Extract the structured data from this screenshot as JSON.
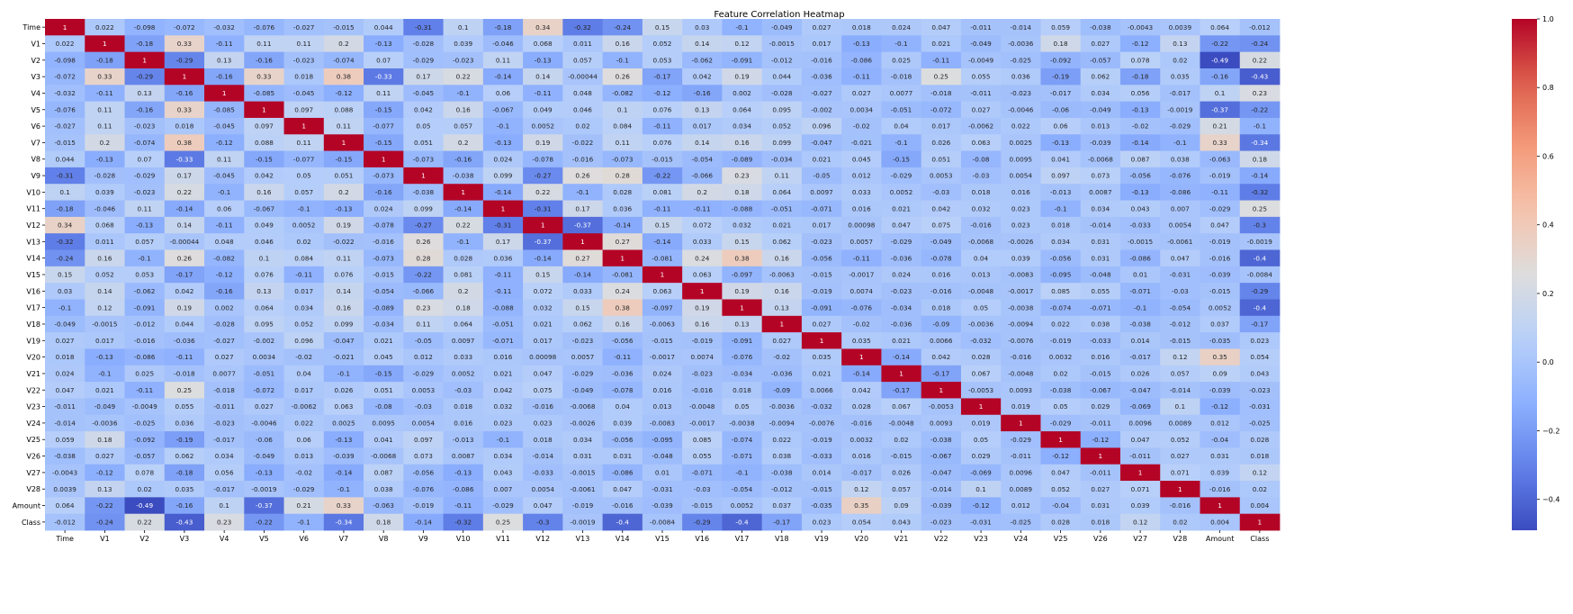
{
  "chart_data": {
    "type": "heatmap",
    "title": "Feature Correlation Heatmap",
    "variables": [
      "Time",
      "V1",
      "V2",
      "V3",
      "V4",
      "V5",
      "V6",
      "V7",
      "V8",
      "V9",
      "V10",
      "V11",
      "V12",
      "V13",
      "V14",
      "V15",
      "V16",
      "V17",
      "V18",
      "V19",
      "V20",
      "V21",
      "V22",
      "V23",
      "V24",
      "V25",
      "V26",
      "V27",
      "V28",
      "Amount",
      "Class"
    ],
    "matrix": [
      [
        1,
        0.022,
        -0.098,
        -0.072,
        -0.032,
        -0.076,
        -0.027,
        -0.015,
        0.044,
        -0.31,
        0.1,
        -0.18,
        0.34,
        -0.32,
        -0.24,
        0.15,
        0.03,
        -0.1,
        -0.049,
        0.027,
        0.018,
        0.024,
        0.047,
        -0.011,
        -0.014,
        0.059,
        -0.038,
        -0.0043,
        0.0039,
        0.064,
        -0.012
      ],
      [
        0.022,
        1,
        -0.18,
        0.33,
        -0.11,
        0.11,
        0.11,
        0.2,
        -0.13,
        -0.028,
        0.039,
        -0.046,
        0.068,
        0.011,
        0.16,
        0.052,
        0.14,
        0.12,
        -0.0015,
        0.017,
        -0.13,
        -0.1,
        0.021,
        -0.049,
        -0.0036,
        0.18,
        0.027,
        -0.12,
        0.13,
        -0.22,
        -0.24
      ],
      [
        -0.098,
        -0.18,
        1,
        -0.29,
        0.13,
        -0.16,
        -0.023,
        -0.074,
        0.07,
        -0.029,
        -0.023,
        0.11,
        -0.13,
        0.057,
        -0.1,
        0.053,
        -0.062,
        -0.091,
        -0.012,
        -0.016,
        -0.086,
        0.025,
        -0.11,
        -0.0049,
        -0.025,
        -0.092,
        -0.057,
        0.078,
        0.02,
        -0.49,
        0.22
      ],
      [
        -0.072,
        0.33,
        -0.29,
        1,
        -0.16,
        0.33,
        0.018,
        0.38,
        -0.33,
        0.17,
        0.22,
        -0.14,
        0.14,
        -0.00044,
        0.26,
        -0.17,
        0.042,
        0.19,
        0.044,
        -0.036,
        -0.11,
        -0.018,
        0.25,
        0.055,
        0.036,
        -0.19,
        0.062,
        -0.18,
        0.035,
        -0.16,
        -0.43
      ],
      [
        -0.032,
        -0.11,
        0.13,
        -0.16,
        1,
        -0.085,
        -0.045,
        -0.12,
        0.11,
        -0.045,
        -0.1,
        0.06,
        -0.11,
        0.048,
        -0.082,
        -0.12,
        -0.16,
        0.002,
        -0.028,
        -0.027,
        0.027,
        0.0077,
        -0.018,
        -0.011,
        -0.023,
        -0.017,
        0.034,
        0.056,
        -0.017,
        0.1,
        0.23
      ],
      [
        -0.076,
        0.11,
        -0.16,
        0.33,
        -0.085,
        1,
        0.097,
        0.088,
        -0.15,
        0.042,
        0.16,
        -0.067,
        0.049,
        0.046,
        0.1,
        0.076,
        0.13,
        0.064,
        0.095,
        -0.002,
        0.0034,
        -0.051,
        -0.072,
        0.027,
        -0.0046,
        -0.06,
        -0.049,
        -0.13,
        -0.0019,
        -0.37,
        -0.22
      ],
      [
        -0.027,
        0.11,
        -0.023,
        0.018,
        -0.045,
        0.097,
        1,
        0.11,
        -0.077,
        0.05,
        0.057,
        -0.1,
        0.0052,
        0.02,
        0.084,
        -0.11,
        0.017,
        0.034,
        0.052,
        0.096,
        -0.02,
        0.04,
        0.017,
        -0.0062,
        0.022,
        0.06,
        0.013,
        -0.02,
        -0.029,
        0.21,
        -0.1
      ],
      [
        -0.015,
        0.2,
        -0.074,
        0.38,
        -0.12,
        0.088,
        0.11,
        1,
        -0.15,
        0.051,
        0.2,
        -0.13,
        0.19,
        -0.022,
        0.11,
        0.076,
        0.14,
        0.16,
        0.099,
        -0.047,
        -0.021,
        -0.1,
        0.026,
        0.063,
        0.0025,
        -0.13,
        -0.039,
        -0.14,
        -0.1,
        0.33,
        -0.34
      ],
      [
        0.044,
        -0.13,
        0.07,
        -0.33,
        0.11,
        -0.15,
        -0.077,
        -0.15,
        1,
        -0.073,
        -0.16,
        0.024,
        -0.078,
        -0.016,
        -0.073,
        -0.015,
        -0.054,
        -0.089,
        -0.034,
        0.021,
        0.045,
        -0.15,
        0.051,
        -0.08,
        0.0095,
        0.041,
        -0.0068,
        0.087,
        0.038,
        -0.063,
        0.18
      ],
      [
        -0.31,
        -0.028,
        -0.029,
        0.17,
        -0.045,
        0.042,
        0.05,
        0.051,
        -0.073,
        1,
        -0.038,
        0.099,
        -0.27,
        0.26,
        0.28,
        -0.22,
        -0.066,
        0.23,
        0.11,
        -0.05,
        0.012,
        -0.029,
        0.0053,
        -0.03,
        0.0054,
        0.097,
        0.073,
        -0.056,
        -0.076,
        -0.019,
        -0.14
      ],
      [
        0.1,
        0.039,
        -0.023,
        0.22,
        -0.1,
        0.16,
        0.057,
        0.2,
        -0.16,
        -0.038,
        1,
        -0.14,
        0.22,
        -0.1,
        0.028,
        0.081,
        0.2,
        0.18,
        0.064,
        0.0097,
        0.033,
        0.0052,
        -0.03,
        0.018,
        0.016,
        -0.013,
        0.0087,
        -0.13,
        -0.086,
        -0.11,
        -0.32
      ],
      [
        -0.18,
        -0.046,
        0.11,
        -0.14,
        0.06,
        -0.067,
        -0.1,
        -0.13,
        0.024,
        0.099,
        -0.14,
        1,
        -0.31,
        0.17,
        0.036,
        -0.11,
        -0.11,
        -0.088,
        -0.051,
        -0.071,
        0.016,
        0.021,
        0.042,
        0.032,
        0.023,
        -0.1,
        0.034,
        0.043,
        0.007,
        -0.029,
        0.25
      ],
      [
        0.34,
        0.068,
        -0.13,
        0.14,
        -0.11,
        0.049,
        0.0052,
        0.19,
        -0.078,
        -0.27,
        0.22,
        -0.31,
        1,
        -0.37,
        -0.14,
        0.15,
        0.072,
        0.032,
        0.021,
        0.017,
        0.00098,
        0.047,
        0.075,
        -0.016,
        0.023,
        0.018,
        -0.014,
        -0.033,
        0.0054,
        0.047,
        -0.3
      ],
      [
        -0.32,
        0.011,
        0.057,
        -0.00044,
        0.048,
        0.046,
        0.02,
        -0.022,
        -0.016,
        0.26,
        -0.1,
        0.17,
        -0.37,
        1,
        0.27,
        -0.14,
        0.033,
        0.15,
        0.062,
        -0.023,
        0.0057,
        -0.029,
        -0.049,
        -0.0068,
        -0.0026,
        0.034,
        0.031,
        -0.0015,
        -0.0061,
        -0.019,
        -0.0019
      ],
      [
        -0.24,
        0.16,
        -0.1,
        0.26,
        -0.082,
        0.1,
        0.084,
        0.11,
        -0.073,
        0.28,
        0.028,
        0.036,
        -0.14,
        0.27,
        1,
        -0.081,
        0.24,
        0.38,
        0.16,
        -0.056,
        -0.11,
        -0.036,
        -0.078,
        0.04,
        0.039,
        -0.056,
        0.031,
        -0.086,
        0.047,
        -0.016,
        -0.4
      ],
      [
        0.15,
        0.052,
        0.053,
        -0.17,
        -0.12,
        0.076,
        -0.11,
        0.076,
        -0.015,
        -0.22,
        0.081,
        -0.11,
        0.15,
        -0.14,
        -0.081,
        1,
        0.063,
        -0.097,
        -0.0063,
        -0.015,
        -0.0017,
        0.024,
        0.016,
        0.013,
        -0.0083,
        -0.095,
        -0.048,
        0.01,
        -0.031,
        -0.039,
        -0.0084
      ],
      [
        0.03,
        0.14,
        -0.062,
        0.042,
        -0.16,
        0.13,
        0.017,
        0.14,
        -0.054,
        -0.066,
        0.2,
        -0.11,
        0.072,
        0.033,
        0.24,
        0.063,
        1,
        0.19,
        0.16,
        -0.019,
        0.0074,
        -0.023,
        -0.016,
        -0.0048,
        -0.0017,
        0.085,
        0.055,
        -0.071,
        -0.03,
        -0.015,
        -0.29
      ],
      [
        -0.1,
        0.12,
        -0.091,
        0.19,
        0.002,
        0.064,
        0.034,
        0.16,
        -0.089,
        0.23,
        0.18,
        -0.088,
        0.032,
        0.15,
        0.38,
        -0.097,
        0.19,
        1,
        0.13,
        -0.091,
        -0.076,
        -0.034,
        0.018,
        0.05,
        -0.0038,
        -0.074,
        -0.071,
        -0.1,
        -0.054,
        0.0052,
        -0.4
      ],
      [
        -0.049,
        -0.0015,
        -0.012,
        0.044,
        -0.028,
        0.095,
        0.052,
        0.099,
        -0.034,
        0.11,
        0.064,
        -0.051,
        0.021,
        0.062,
        0.16,
        -0.0063,
        0.16,
        0.13,
        1,
        0.027,
        -0.02,
        -0.036,
        -0.09,
        -0.0036,
        -0.0094,
        0.022,
        0.038,
        -0.038,
        -0.012,
        0.037,
        -0.17
      ],
      [
        0.027,
        0.017,
        -0.016,
        -0.036,
        -0.027,
        -0.002,
        0.096,
        -0.047,
        0.021,
        -0.05,
        0.0097,
        -0.071,
        0.017,
        -0.023,
        -0.056,
        -0.015,
        -0.019,
        -0.091,
        0.027,
        1,
        0.035,
        0.021,
        0.0066,
        -0.032,
        -0.0076,
        -0.019,
        -0.033,
        0.014,
        -0.015,
        -0.035,
        0.023
      ],
      [
        0.018,
        -0.13,
        -0.086,
        -0.11,
        0.027,
        0.0034,
        -0.02,
        -0.021,
        0.045,
        0.012,
        0.033,
        0.016,
        0.00098,
        0.0057,
        -0.11,
        -0.0017,
        0.0074,
        -0.076,
        -0.02,
        0.035,
        1,
        -0.14,
        0.042,
        0.028,
        -0.016,
        0.0032,
        0.016,
        -0.017,
        0.12,
        0.35,
        0.054
      ],
      [
        0.024,
        -0.1,
        0.025,
        -0.018,
        0.0077,
        -0.051,
        0.04,
        -0.1,
        -0.15,
        -0.029,
        0.0052,
        0.021,
        0.047,
        -0.029,
        -0.036,
        0.024,
        -0.023,
        -0.034,
        -0.036,
        0.021,
        -0.14,
        1,
        -0.17,
        0.067,
        -0.0048,
        0.02,
        -0.015,
        0.026,
        0.057,
        0.09,
        0.043
      ],
      [
        0.047,
        0.021,
        -0.11,
        0.25,
        -0.018,
        -0.072,
        0.017,
        0.026,
        0.051,
        0.0053,
        -0.03,
        0.042,
        0.075,
        -0.049,
        -0.078,
        0.016,
        -0.016,
        0.018,
        -0.09,
        0.0066,
        0.042,
        -0.17,
        1,
        -0.0053,
        0.0093,
        -0.038,
        -0.067,
        -0.047,
        -0.014,
        -0.039,
        -0.023
      ],
      [
        -0.011,
        -0.049,
        -0.0049,
        0.055,
        -0.011,
        0.027,
        -0.0062,
        0.063,
        -0.08,
        -0.03,
        0.018,
        0.032,
        -0.016,
        -0.0068,
        0.04,
        0.013,
        -0.0048,
        0.05,
        -0.0036,
        -0.032,
        0.028,
        0.067,
        -0.0053,
        1,
        0.019,
        0.05,
        0.029,
        -0.069,
        0.1,
        -0.12,
        -0.031
      ],
      [
        -0.014,
        -0.0036,
        -0.025,
        0.036,
        -0.023,
        -0.0046,
        0.022,
        0.0025,
        0.0095,
        0.0054,
        0.016,
        0.023,
        0.023,
        -0.0026,
        0.039,
        -0.0083,
        -0.0017,
        -0.0038,
        -0.0094,
        -0.0076,
        -0.016,
        -0.0048,
        0.0093,
        0.019,
        1,
        -0.029,
        -0.011,
        0.0096,
        0.0089,
        0.012,
        -0.025
      ],
      [
        0.059,
        0.18,
        -0.092,
        -0.19,
        -0.017,
        -0.06,
        0.06,
        -0.13,
        0.041,
        0.097,
        -0.013,
        -0.1,
        0.018,
        0.034,
        -0.056,
        -0.095,
        0.085,
        -0.074,
        0.022,
        -0.019,
        0.0032,
        0.02,
        -0.038,
        0.05,
        -0.029,
        1,
        -0.12,
        0.047,
        0.052,
        -0.04,
        0.028
      ],
      [
        -0.038,
        0.027,
        -0.057,
        0.062,
        0.034,
        -0.049,
        0.013,
        -0.039,
        -0.0068,
        0.073,
        0.0087,
        0.034,
        -0.014,
        0.031,
        0.031,
        -0.048,
        0.055,
        -0.071,
        0.038,
        -0.033,
        0.016,
        -0.015,
        -0.067,
        0.029,
        -0.011,
        -0.12,
        1,
        -0.011,
        0.027,
        0.031,
        0.018
      ],
      [
        -0.0043,
        -0.12,
        0.078,
        -0.18,
        0.056,
        -0.13,
        -0.02,
        -0.14,
        0.087,
        -0.056,
        -0.13,
        0.043,
        -0.033,
        -0.0015,
        -0.086,
        0.01,
        -0.071,
        -0.1,
        -0.038,
        0.014,
        -0.017,
        0.026,
        -0.047,
        -0.069,
        0.0096,
        0.047,
        -0.011,
        1,
        0.071,
        0.039,
        0.12
      ],
      [
        0.0039,
        0.13,
        0.02,
        0.035,
        -0.017,
        -0.0019,
        -0.029,
        -0.1,
        0.038,
        -0.076,
        -0.086,
        0.007,
        0.0054,
        -0.0061,
        0.047,
        -0.031,
        -0.03,
        -0.054,
        -0.012,
        -0.015,
        0.12,
        0.057,
        -0.014,
        0.1,
        0.0089,
        0.052,
        0.027,
        0.071,
        1,
        -0.016,
        0.02
      ],
      [
        0.064,
        -0.22,
        -0.49,
        -0.16,
        0.1,
        -0.37,
        0.21,
        0.33,
        -0.063,
        -0.019,
        -0.11,
        -0.029,
        0.047,
        -0.019,
        -0.016,
        -0.039,
        -0.015,
        0.0052,
        0.037,
        -0.035,
        0.35,
        0.09,
        -0.039,
        -0.12,
        0.012,
        -0.04,
        0.031,
        0.039,
        -0.016,
        1,
        0.004
      ],
      [
        -0.012,
        -0.24,
        0.22,
        -0.43,
        0.23,
        -0.22,
        -0.1,
        -0.34,
        0.18,
        -0.14,
        -0.32,
        0.25,
        -0.3,
        -0.0019,
        -0.4,
        -0.0084,
        -0.29,
        -0.4,
        -0.17,
        0.023,
        0.054,
        0.043,
        -0.023,
        -0.031,
        -0.025,
        0.028,
        0.018,
        0.12,
        0.02,
        0.004,
        1
      ]
    ],
    "colormap": "coolwarm",
    "colorbar": {
      "min": -0.49,
      "max": 1.0,
      "ticks": [
        1.0,
        0.8,
        0.6,
        0.4,
        0.2,
        0.0,
        -0.2,
        -0.4
      ]
    },
    "annotations": true
  }
}
